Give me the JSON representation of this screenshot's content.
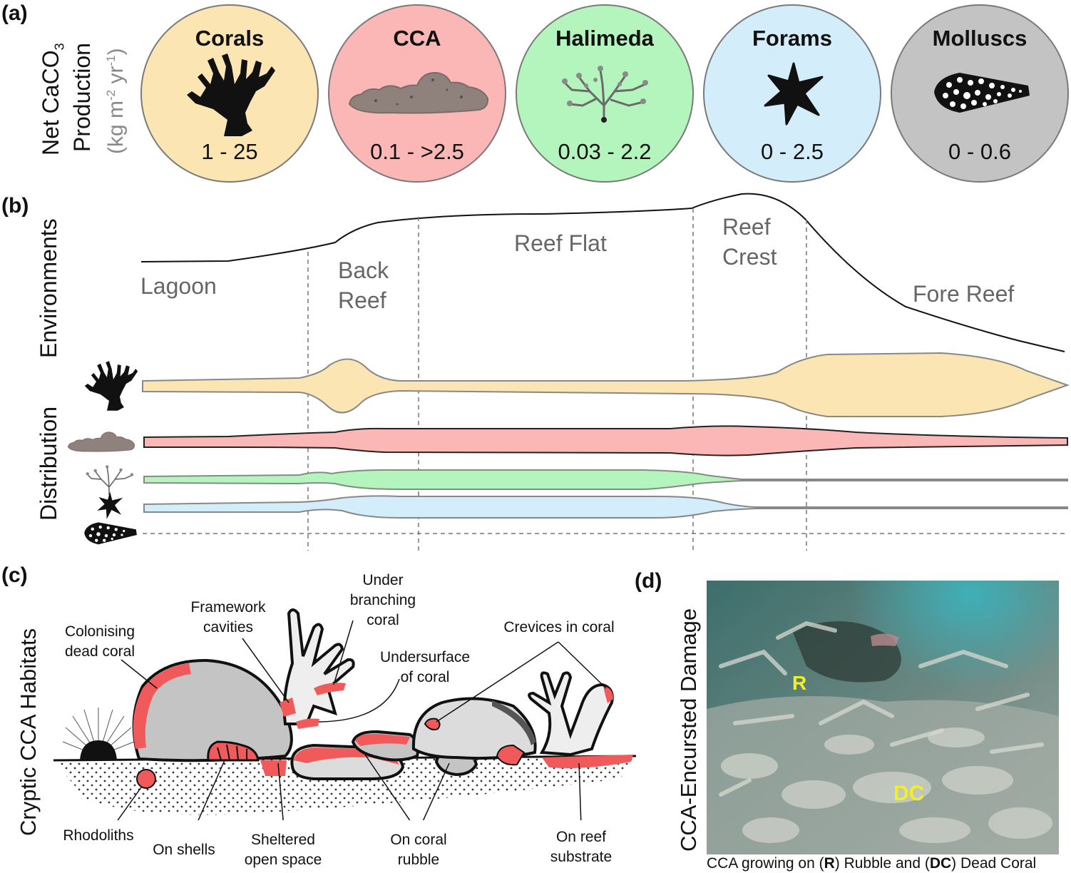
{
  "panels": {
    "a": "(a)",
    "b": "(b)",
    "c": "(c)",
    "d": "(d)"
  },
  "panel_a": {
    "ylabel_line1": "Net CaCO",
    "ylabel_sub": "3",
    "ylabel_line2": "Production",
    "ylabel_units": "(kg m-2 yr-1)",
    "ylabel_units_parts": {
      "open": "(kg m",
      "exp1": "-2",
      "mid": " yr",
      "exp2": "-1",
      "close": ")"
    },
    "groups": [
      {
        "name": "Corals",
        "value": "1 - 25",
        "color": "#fbe6b3",
        "icon": "coral-icon"
      },
      {
        "name": "CCA",
        "value": "0.1 - >2.5",
        "color": "#fbb6b6",
        "icon": "cca-icon"
      },
      {
        "name": "Halimeda",
        "value": "0.03 - 2.2",
        "color": "#b4f5bd",
        "icon": "halimeda-icon"
      },
      {
        "name": "Forams",
        "value": "0 - 2.5",
        "color": "#d3eefa",
        "icon": "foram-icon"
      },
      {
        "name": "Molluscs",
        "value": "0 - 0.6",
        "color": "#c3c3c3",
        "icon": "mollusc-icon"
      }
    ]
  },
  "panel_b": {
    "environments_label": "Environments",
    "distribution_label": "Distribution",
    "zones": [
      {
        "line1": "Lagoon",
        "line2": ""
      },
      {
        "line1": "Back",
        "line2": "Reef"
      },
      {
        "line1": "Reef Flat",
        "line2": ""
      },
      {
        "line1": "Reef",
        "line2": "Crest"
      },
      {
        "line1": "Fore Reef",
        "line2": ""
      }
    ],
    "band_colors": {
      "corals": "#fbe6b3",
      "cca": "#fbb6b6",
      "halimeda": "#b4f5bd",
      "forams": "#d3eefa"
    }
  },
  "panel_c": {
    "ylabel": "Cryptic CCA Habitats",
    "labels": {
      "colonising": [
        "Colonising",
        "dead coral"
      ],
      "framework": [
        "Framework",
        "cavities"
      ],
      "under_branching": [
        "Under",
        "branching",
        "coral"
      ],
      "undersurface": [
        "Undersurface",
        "of coral"
      ],
      "crevices": "Crevices in coral",
      "rhodoliths": "Rhodoliths",
      "shells": "On shells",
      "sheltered": [
        "Sheltered",
        "open space"
      ],
      "rubble": [
        "On coral",
        "rubble"
      ],
      "substrate": [
        "On reef",
        "substrate"
      ]
    },
    "cca_color": "#f05a5a"
  },
  "panel_d": {
    "ylabel": "CCA-Encursted Damage",
    "markers": {
      "r": "R",
      "dc": "DC"
    },
    "caption": {
      "pre": "CCA growing on (",
      "r": "R",
      "mid": ") Rubble and (",
      "dc": "DC",
      "post": ") Dead Coral"
    }
  }
}
